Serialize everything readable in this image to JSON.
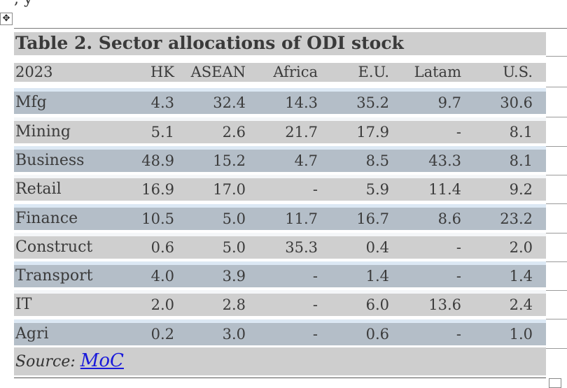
{
  "table": {
    "title": "Table 2. Sector allocations of ODI stock",
    "header": [
      "2023",
      "HK",
      "ASEAN",
      "Africa",
      "E.U.",
      "Latam",
      "U.S."
    ],
    "rows": [
      {
        "sector": "Mfg",
        "values": [
          "4.3",
          "32.4",
          "14.3",
          "35.2",
          "9.7",
          "30.6"
        ]
      },
      {
        "sector": "Mining",
        "values": [
          "5.1",
          "2.6",
          "21.7",
          "17.9",
          "-",
          "8.1"
        ]
      },
      {
        "sector": "Business",
        "values": [
          "48.9",
          "15.2",
          "4.7",
          "8.5",
          "43.3",
          "8.1"
        ]
      },
      {
        "sector": "Retail",
        "values": [
          "16.9",
          "17.0",
          "-",
          "5.9",
          "11.4",
          "9.2"
        ]
      },
      {
        "sector": "Finance",
        "values": [
          "10.5",
          "5.0",
          "11.7",
          "16.7",
          "8.6",
          "23.2"
        ]
      },
      {
        "sector": "Construct",
        "values": [
          "0.6",
          "5.0",
          "35.3",
          "0.4",
          "-",
          "2.0"
        ]
      },
      {
        "sector": "Transport",
        "values": [
          "4.0",
          "3.9",
          "-",
          "1.4",
          "-",
          "1.4"
        ]
      },
      {
        "sector": "IT",
        "values": [
          "2.0",
          "2.8",
          "-",
          "6.0",
          "13.6",
          "2.4"
        ]
      },
      {
        "sector": "Agri",
        "values": [
          "0.2",
          "3.0",
          "-",
          "0.6",
          "-",
          "1.0"
        ]
      }
    ],
    "source_label": "Source:",
    "source_link": "MoC"
  },
  "icons": {
    "move_handle": "move-icon",
    "resize_handle": "resize-icon"
  }
}
